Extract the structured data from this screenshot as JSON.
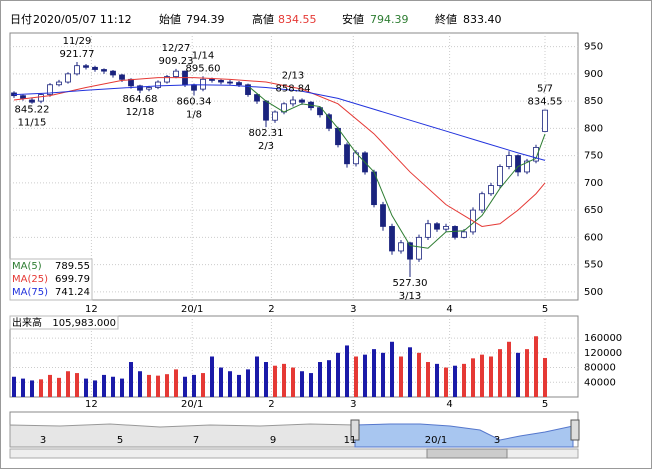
{
  "header": {
    "date_label": "日付",
    "date": "2020/05/07 11:12",
    "open_label": "始値",
    "open": "794.39",
    "high_label": "高値",
    "high": "834.55",
    "low_label": "安値",
    "low": "794.39",
    "close_label": "終値",
    "close": "833.40"
  },
  "chart_data": {
    "type": "candlestick",
    "up_color": "#ffffff",
    "down_color": "#1a237e",
    "edge_color": "#1a237e",
    "vol_up_color": "#e53935",
    "vol_down_color": "#1a1aa8",
    "ylim": [
      485,
      975
    ],
    "yticks": [
      500,
      550,
      600,
      650,
      700,
      750,
      800,
      850,
      900,
      950
    ],
    "xticks": [
      {
        "value": 8.6,
        "label": "12"
      },
      {
        "value": 19.8,
        "label": "20/1"
      },
      {
        "value": 28.6,
        "label": "2"
      },
      {
        "value": 37.7,
        "label": "3"
      },
      {
        "value": 48.4,
        "label": "4"
      },
      {
        "value": 59,
        "label": "5"
      }
    ],
    "grid": true,
    "open": [
      865,
      860,
      852,
      850,
      862,
      880,
      885,
      900,
      915,
      912,
      908,
      905,
      898,
      890,
      878,
      872,
      875,
      885,
      895,
      905,
      880,
      872,
      890,
      888,
      885,
      884,
      880,
      862,
      850,
      815,
      830,
      845,
      852,
      848,
      838,
      825,
      800,
      770,
      735,
      755,
      720,
      660,
      620,
      575,
      590,
      560,
      600,
      625,
      615,
      620,
      600,
      610,
      650,
      680,
      695,
      730,
      750,
      720,
      740,
      794.39
    ],
    "high": [
      868,
      862,
      856,
      864,
      883,
      889,
      903,
      921.77,
      918,
      915,
      910,
      907,
      900,
      892,
      880,
      878,
      888,
      898,
      909.23,
      906,
      882,
      895.6,
      893,
      890,
      889,
      887,
      882,
      865,
      852,
      833,
      848,
      858.84,
      855,
      850,
      840,
      828,
      803,
      774,
      760,
      758,
      724,
      665,
      625,
      595,
      592,
      605,
      632,
      628,
      625,
      622,
      615,
      655,
      684,
      700,
      734,
      758,
      752,
      744,
      770,
      834.55
    ],
    "low": [
      856,
      851,
      845.22,
      846,
      858,
      877,
      882,
      897,
      908,
      904,
      900,
      893,
      885,
      873,
      864.68,
      868,
      872,
      882,
      892,
      876,
      860.34,
      868,
      884,
      881,
      880,
      876,
      858,
      845,
      802.31,
      810,
      826,
      840,
      843,
      833,
      820,
      795,
      765,
      728,
      730,
      715,
      655,
      612,
      568,
      570,
      527.3,
      555,
      595,
      610,
      610,
      596,
      598,
      605,
      645,
      676,
      690,
      725,
      712,
      716,
      736,
      794.39
    ],
    "close": [
      860,
      855,
      848,
      862,
      880,
      885,
      900,
      915,
      912,
      908,
      905,
      898,
      890,
      878,
      870,
      875,
      885,
      895,
      905,
      880,
      870,
      890,
      888,
      885,
      884,
      880,
      862,
      850,
      815,
      830,
      845,
      852,
      848,
      838,
      825,
      800,
      770,
      735,
      755,
      720,
      660,
      620,
      575,
      590,
      560,
      600,
      625,
      615,
      620,
      600,
      610,
      650,
      680,
      695,
      730,
      750,
      720,
      740,
      765,
      833.4
    ],
    "ma": [
      {
        "name": "MA(5)",
        "color": "#2e7d32",
        "x": [
          26,
          28,
          30,
          32,
          34,
          36,
          38,
          40,
          42,
          44,
          46,
          48,
          50,
          52,
          54,
          56,
          58,
          59
        ],
        "values": [
          878,
          850,
          830,
          845,
          840,
          800,
          755,
          720,
          640,
          585,
          580,
          610,
          612,
          640,
          690,
          730,
          745,
          789.55
        ]
      },
      {
        "name": "MA(25)",
        "color": "#e53935",
        "x": [
          0,
          4,
          8,
          12,
          16,
          20,
          24,
          28,
          32,
          36,
          40,
          44,
          48,
          50,
          52,
          54,
          56,
          58,
          59
        ],
        "values": [
          852,
          860,
          875,
          888,
          893,
          893,
          890,
          885,
          872,
          845,
          790,
          720,
          660,
          640,
          620,
          625,
          650,
          680,
          699.79
        ]
      },
      {
        "name": "MA(75)",
        "color": "#2233dd",
        "x": [
          0,
          4,
          8,
          12,
          16,
          20,
          24,
          28,
          32,
          36,
          40,
          44,
          48,
          52,
          56,
          59
        ],
        "values": [
          862,
          865,
          870,
          874,
          878,
          880,
          879,
          875,
          868,
          855,
          835,
          815,
          795,
          775,
          755,
          741.24
        ]
      }
    ],
    "annotations": [
      {
        "date": "11/15",
        "value": 845.22,
        "label": "845.22",
        "x": 2,
        "side": "below"
      },
      {
        "date": "11/29",
        "value": 921.77,
        "label": "921.77",
        "x": 7,
        "side": "above"
      },
      {
        "date": "12/18",
        "value": 864.68,
        "label": "864.68",
        "x": 14,
        "side": "below"
      },
      {
        "date": "12/27",
        "value": 909.23,
        "label": "909.23",
        "x": 18,
        "side": "above"
      },
      {
        "date": "1/8",
        "value": 860.34,
        "label": "860.34",
        "x": 20,
        "side": "below"
      },
      {
        "date": "1/14",
        "value": 895.6,
        "label": "895.60",
        "x": 21,
        "side": "above"
      },
      {
        "date": "2/3",
        "value": 802.31,
        "label": "802.31",
        "x": 28,
        "side": "below"
      },
      {
        "date": "2/13",
        "value": 858.84,
        "label": "858.84",
        "x": 31,
        "side": "above"
      },
      {
        "date": "3/13",
        "value": 527.3,
        "label": "527.30",
        "x": 44,
        "side": "below"
      },
      {
        "date": "5/7",
        "value": 834.55,
        "label": "834.55",
        "x": 59,
        "side": "above"
      }
    ],
    "volume": {
      "label": "出来高",
      "latest": "105,983.000",
      "ylim": [
        0,
        220000
      ],
      "yticks": [
        40000,
        80000,
        120000,
        160000
      ],
      "values": [
        55000,
        50000,
        45000,
        48000,
        60000,
        52000,
        70000,
        65000,
        50000,
        45000,
        60000,
        55000,
        50000,
        95000,
        70000,
        60000,
        58000,
        62000,
        75000,
        55000,
        60000,
        65000,
        110000,
        80000,
        70000,
        60000,
        75000,
        110000,
        95000,
        85000,
        90000,
        80000,
        70000,
        65000,
        95000,
        100000,
        120000,
        140000,
        110000,
        115000,
        130000,
        120000,
        150000,
        110000,
        135000,
        120000,
        95000,
        90000,
        80000,
        85000,
        90000,
        105000,
        115000,
        110000,
        130000,
        150000,
        120000,
        130000,
        165000,
        105983
      ]
    }
  },
  "navigator": {
    "labels": [
      "3",
      "5",
      "7",
      "9",
      "11",
      "20/1",
      "3"
    ]
  }
}
